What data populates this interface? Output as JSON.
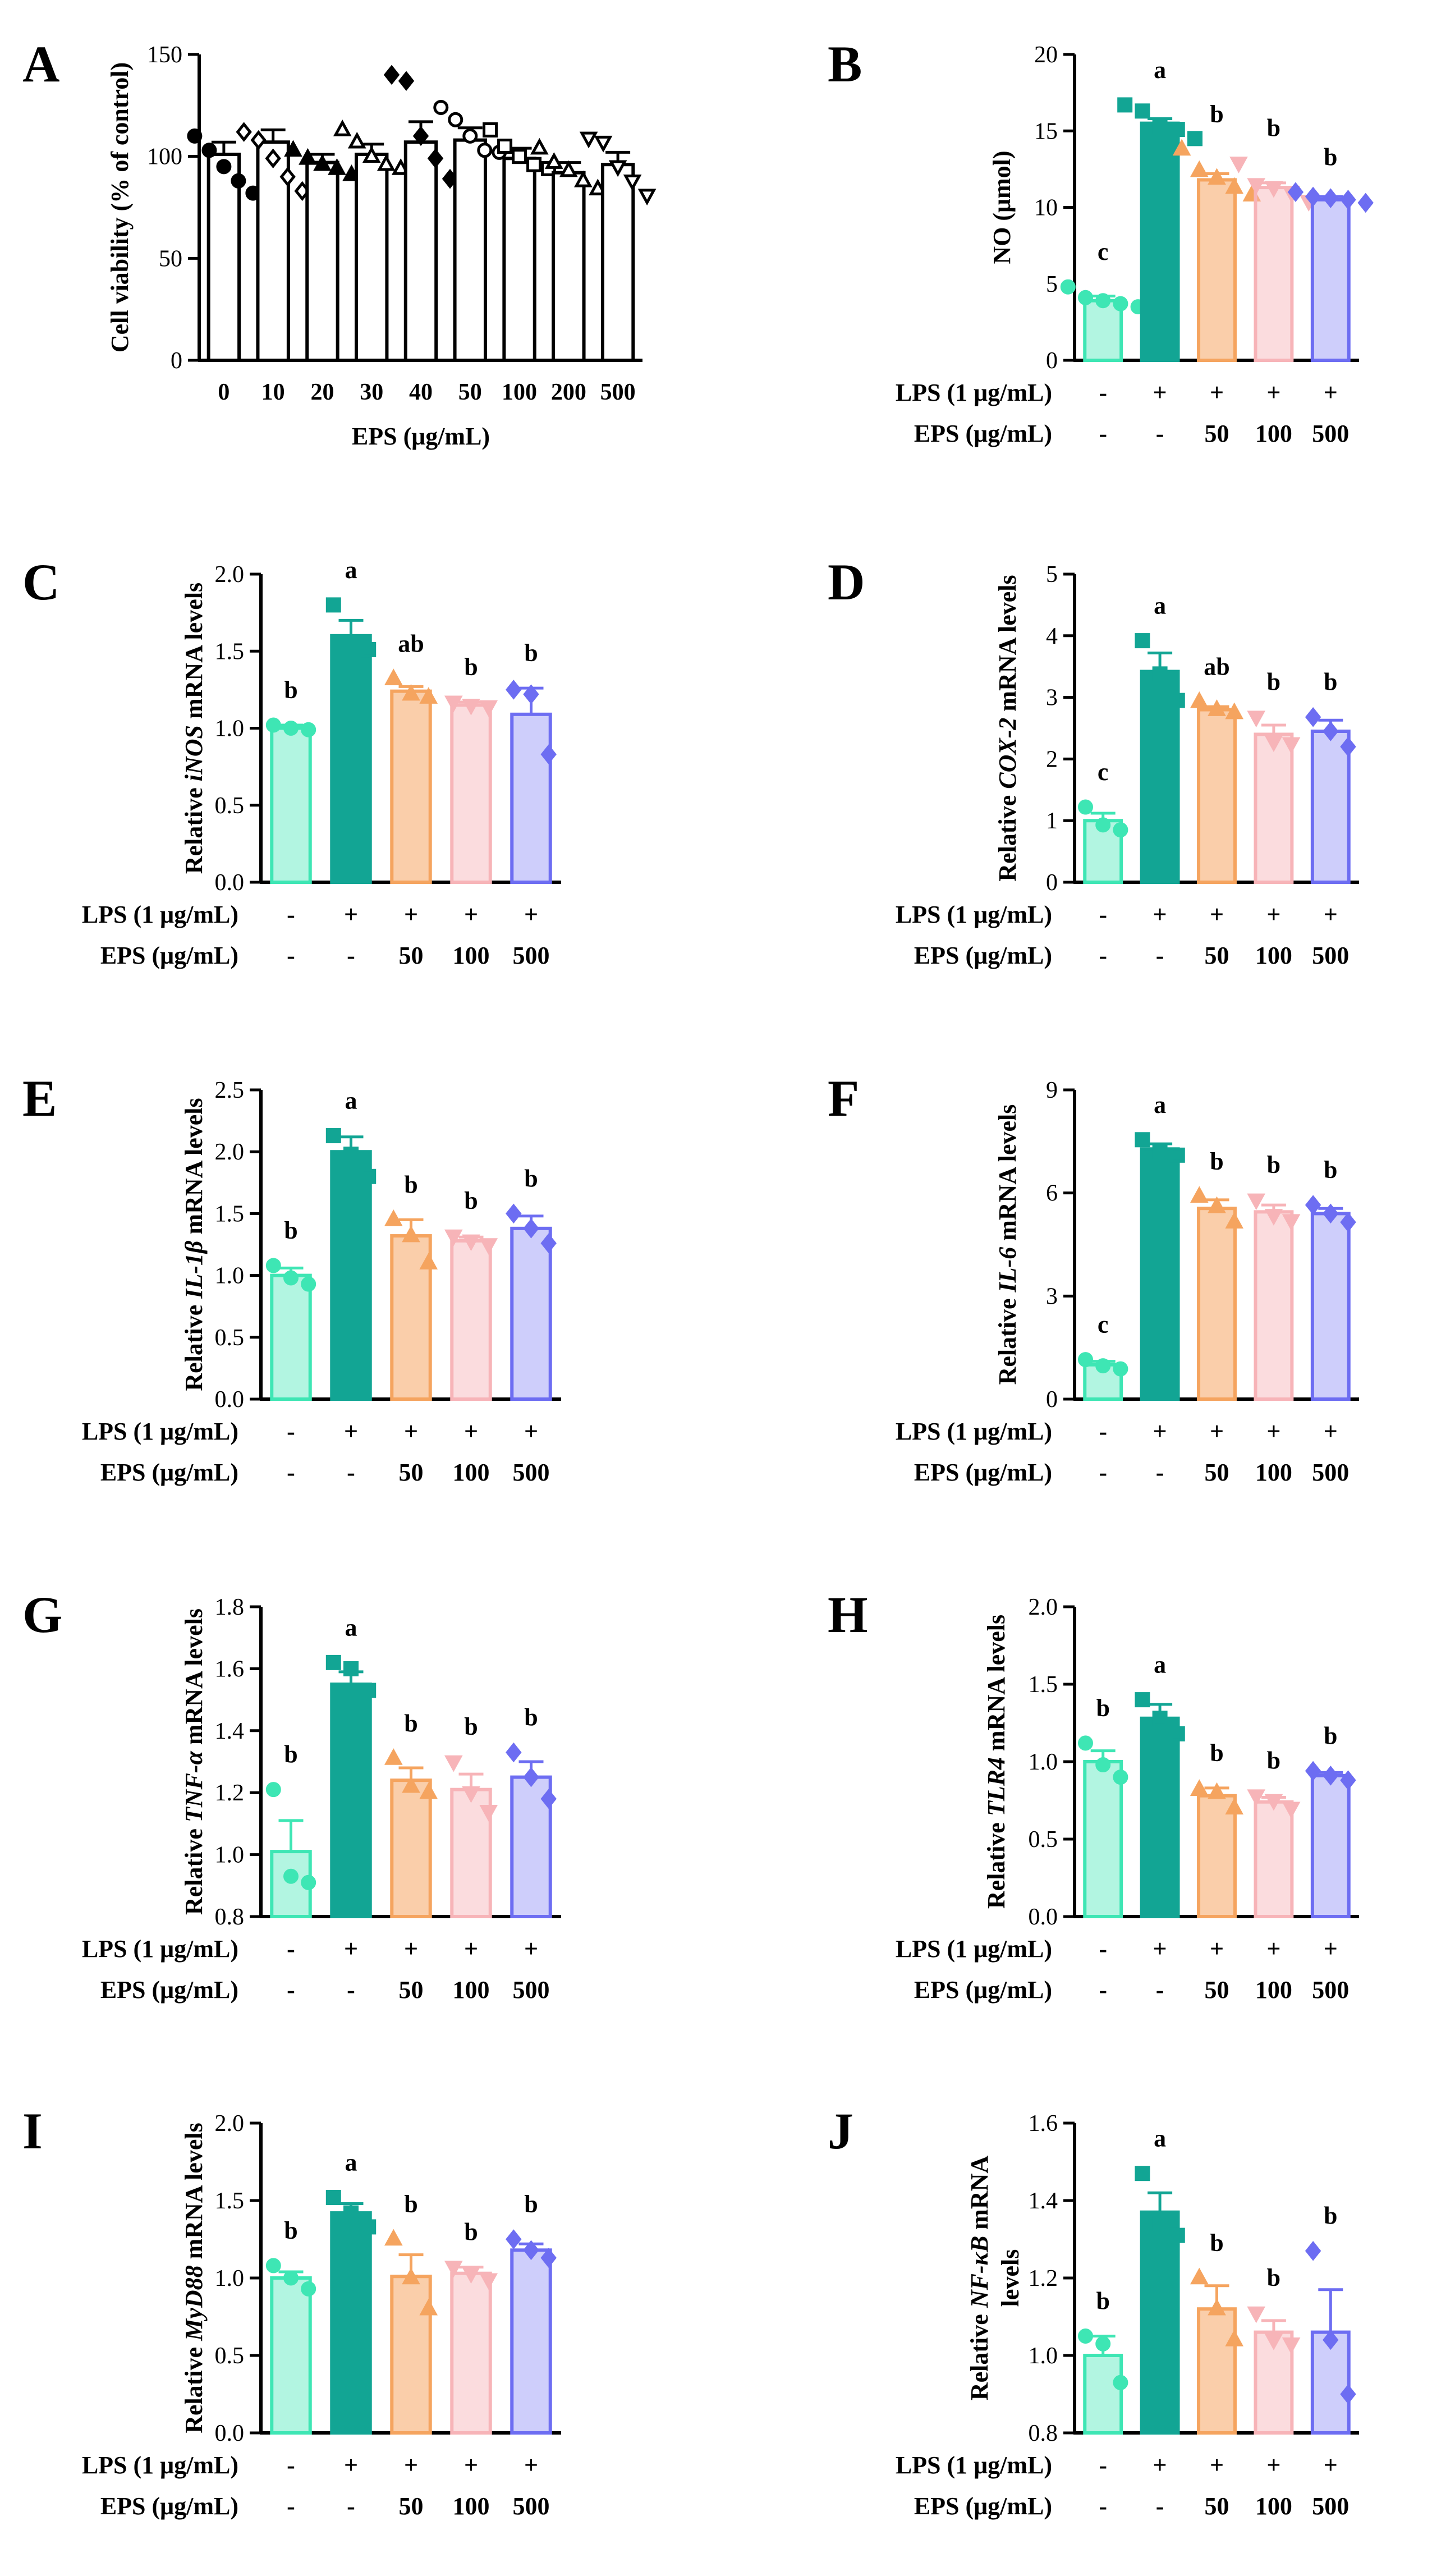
{
  "colors": {
    "control": "#3ee6b4",
    "lps": "#12a594",
    "eps50": "#f5a45f",
    "eps100": "#f7b4b8",
    "eps500": "#6d6df2",
    "black": "#000000"
  },
  "condition_table": {
    "lps_label": "LPS (1 μg/mL)",
    "eps_label": "EPS (μg/mL)",
    "lps_values": [
      "-",
      "+",
      "+",
      "+",
      "+"
    ],
    "eps_values": [
      "-",
      "-",
      "50",
      "100",
      "500"
    ]
  },
  "chart_data": [
    {
      "panel": "A",
      "type": "bar",
      "ylabel": "Cell viability (% of control)",
      "xlabel": "EPS (μg/mL)",
      "categories": [
        "0",
        "10",
        "20",
        "30",
        "40",
        "50",
        "100",
        "200",
        "500"
      ],
      "values": [
        101,
        107,
        97,
        101,
        107,
        108,
        99,
        92,
        96
      ],
      "errors": [
        6,
        6,
        4,
        5,
        10,
        6,
        5,
        5,
        6
      ],
      "ylim": [
        0,
        150
      ],
      "yticks": [
        0,
        50,
        100,
        150
      ],
      "points": [
        [
          110,
          103,
          95,
          88,
          82
        ],
        [
          112,
          108,
          99,
          90,
          83
        ],
        [
          103,
          99,
          96,
          94,
          91
        ],
        [
          113,
          107,
          100,
          96,
          94
        ],
        [
          140,
          137,
          110,
          99,
          89
        ],
        [
          124,
          118,
          110,
          103,
          102
        ],
        [
          113,
          105,
          100,
          96,
          94
        ],
        [
          104,
          97,
          93,
          88,
          84
        ],
        [
          109,
          107,
          95,
          88,
          81
        ]
      ],
      "markers": [
        "circle",
        "diamond-open",
        "triangle",
        "triangle-open",
        "diamond",
        "circle-open",
        "square-open",
        "triangle-open",
        "triangle-down-open"
      ],
      "letters": []
    },
    {
      "panel": "B",
      "type": "bar",
      "ylabel": "NO (μmol)",
      "values": [
        3.9,
        15.5,
        11.8,
        11.3,
        10.5
      ],
      "errors": [
        0.3,
        0.3,
        0.4,
        0.3,
        0.2
      ],
      "ylim": [
        0,
        20
      ],
      "yticks": [
        0,
        5,
        10,
        15,
        20
      ],
      "points": [
        [
          4.8,
          4.1,
          3.9,
          3.7,
          3.5
        ],
        [
          16.7,
          16.3,
          15.3,
          15.1,
          14.5
        ],
        [
          13.8,
          12.4,
          11.9,
          11.3,
          10.8
        ],
        [
          12.9,
          11.5,
          11.3,
          11.0,
          10.4
        ],
        [
          11.0,
          10.7,
          10.6,
          10.5,
          10.3
        ]
      ],
      "letters": [
        "c",
        "a",
        "b",
        "b",
        "b"
      ]
    },
    {
      "panel": "C",
      "type": "bar",
      "ylabel_prefix": "Relative ",
      "ylabel_gene": "iNOS",
      "ylabel_suffix": " mRNA levels",
      "values": [
        1.0,
        1.6,
        1.24,
        1.15,
        1.09
      ],
      "errors": [
        0.02,
        0.1,
        0.03,
        0.02,
        0.17
      ],
      "ylim": [
        0,
        2.0
      ],
      "yticks": [
        "0.0",
        "0.5",
        "1.0",
        "1.5",
        "2.0"
      ],
      "points": [
        [
          1.02,
          1.0,
          0.99
        ],
        [
          1.8,
          1.53,
          1.51
        ],
        [
          1.32,
          1.22,
          1.2
        ],
        [
          1.17,
          1.15,
          1.14
        ],
        [
          1.25,
          1.22,
          0.83
        ]
      ],
      "letters": [
        "b",
        "a",
        "ab",
        "b",
        "b"
      ]
    },
    {
      "panel": "D",
      "type": "bar",
      "ylabel_prefix": "Relative ",
      "ylabel_gene": "COX-2",
      "ylabel_suffix": "  mRNA levels",
      "values": [
        1.0,
        3.42,
        2.8,
        2.4,
        2.45
      ],
      "errors": [
        0.12,
        0.3,
        0.05,
        0.15,
        0.18
      ],
      "ylim": [
        0,
        5
      ],
      "yticks": [
        "0",
        "1",
        "2",
        "3",
        "4",
        "5"
      ],
      "points": [
        [
          1.22,
          0.93,
          0.85
        ],
        [
          3.92,
          3.38,
          2.95
        ],
        [
          2.93,
          2.8,
          2.75
        ],
        [
          2.68,
          2.28,
          2.25
        ],
        [
          2.68,
          2.45,
          2.2
        ]
      ],
      "letters": [
        "c",
        "a",
        "ab",
        "b",
        "b"
      ]
    },
    {
      "panel": "E",
      "type": "bar",
      "ylabel_prefix": "Relative ",
      "ylabel_gene": "IL-1β",
      "ylabel_suffix": " mRNA levels",
      "values": [
        1.0,
        2.0,
        1.32,
        1.28,
        1.38
      ],
      "errors": [
        0.06,
        0.12,
        0.13,
        0.03,
        0.1
      ],
      "ylim": [
        0,
        2.5
      ],
      "yticks": [
        "0.0",
        "0.5",
        "1.0",
        "1.5",
        "2.0",
        "2.5"
      ],
      "points": [
        [
          1.08,
          0.98,
          0.93
        ],
        [
          2.13,
          1.98,
          1.8
        ],
        [
          1.45,
          1.32,
          1.1
        ],
        [
          1.32,
          1.28,
          1.25
        ],
        [
          1.5,
          1.38,
          1.26
        ]
      ],
      "letters": [
        "b",
        "a",
        "b",
        "b",
        "b"
      ]
    },
    {
      "panel": "F",
      "type": "bar",
      "ylabel_prefix": "Relative ",
      "ylabel_gene": "IL-6",
      "ylabel_suffix": " mRNA levels",
      "values": [
        1.0,
        7.28,
        5.55,
        5.45,
        5.4
      ],
      "errors": [
        0.1,
        0.15,
        0.25,
        0.2,
        0.15
      ],
      "ylim": [
        0,
        9
      ],
      "yticks": [
        "0",
        "3",
        "6",
        "9"
      ],
      "points": [
        [
          1.15,
          0.97,
          0.88
        ],
        [
          7.55,
          7.2,
          7.1
        ],
        [
          5.9,
          5.6,
          5.15
        ],
        [
          5.8,
          5.35,
          5.2
        ],
        [
          5.65,
          5.4,
          5.15
        ]
      ],
      "letters": [
        "c",
        "a",
        "b",
        "b",
        "b"
      ]
    },
    {
      "panel": "G",
      "type": "bar",
      "ylabel_prefix": "Relative ",
      "ylabel_gene": "TNF-α",
      "ylabel_suffix": " mRNA levels",
      "values": [
        1.01,
        1.55,
        1.24,
        1.21,
        1.25
      ],
      "errors": [
        0.1,
        0.04,
        0.04,
        0.05,
        0.05
      ],
      "ylim": [
        0.8,
        1.8
      ],
      "yticks": [
        "0.8",
        "1.0",
        "1.2",
        "1.4",
        "1.6",
        "1.8"
      ],
      "points": [
        [
          1.21,
          0.93,
          0.91
        ],
        [
          1.62,
          1.6,
          1.53
        ],
        [
          1.31,
          1.22,
          1.2
        ],
        [
          1.3,
          1.2,
          1.14
        ],
        [
          1.33,
          1.25,
          1.18
        ]
      ],
      "letters": [
        "b",
        "a",
        "b",
        "b",
        "b"
      ]
    },
    {
      "panel": "H",
      "type": "bar",
      "ylabel_prefix": "Relative ",
      "ylabel_gene": "TLR4",
      "ylabel_suffix": " mRNA levels",
      "values": [
        1.0,
        1.28,
        0.78,
        0.74,
        0.91
      ],
      "errors": [
        0.07,
        0.09,
        0.05,
        0.03,
        0.02
      ],
      "ylim": [
        0,
        2.0
      ],
      "yticks": [
        "0.0",
        "0.5",
        "1.0",
        "1.5",
        "2.0"
      ],
      "points": [
        [
          1.12,
          0.98,
          0.9
        ],
        [
          1.4,
          1.28,
          1.18
        ],
        [
          0.82,
          0.8,
          0.7
        ],
        [
          0.78,
          0.75,
          0.7
        ],
        [
          0.94,
          0.91,
          0.88
        ]
      ],
      "letters": [
        "b",
        "a",
        "b",
        "b",
        "b"
      ]
    },
    {
      "panel": "I",
      "type": "bar",
      "ylabel_prefix": "Relative ",
      "ylabel_gene": "MyD88",
      "ylabel_suffix": " mRNA levels",
      "values": [
        1.0,
        1.42,
        1.01,
        1.03,
        1.18
      ],
      "errors": [
        0.04,
        0.06,
        0.14,
        0.04,
        0.04
      ],
      "ylim": [
        0,
        2.0
      ],
      "yticks": [
        "0.0",
        "0.5",
        "1.0",
        "1.5",
        "2.0"
      ],
      "points": [
        [
          1.08,
          1.0,
          0.93
        ],
        [
          1.52,
          1.42,
          1.33
        ],
        [
          1.25,
          1.0,
          0.8
        ],
        [
          1.07,
          1.03,
          0.99
        ],
        [
          1.25,
          1.18,
          1.13
        ]
      ],
      "letters": [
        "b",
        "a",
        "b",
        "b",
        "b"
      ]
    },
    {
      "panel": "J",
      "type": "bar",
      "ylabel_line1_prefix": "Relative ",
      "ylabel_gene": "NF-κB",
      "ylabel_line1_suffix": " mRNA",
      "ylabel_line2": "levels",
      "values": [
        1.0,
        1.37,
        1.12,
        1.06,
        1.06
      ],
      "errors": [
        0.05,
        0.05,
        0.06,
        0.03,
        0.11
      ],
      "ylim": [
        0.8,
        1.6
      ],
      "yticks": [
        "0.8",
        "1.0",
        "1.2",
        "1.4",
        "1.6"
      ],
      "points": [
        [
          1.05,
          1.03,
          0.93
        ],
        [
          1.47,
          1.34,
          1.31
        ],
        [
          1.2,
          1.12,
          1.04
        ],
        [
          1.11,
          1.04,
          1.03
        ],
        [
          1.27,
          1.04,
          0.9
        ]
      ],
      "letters": [
        "b",
        "a",
        "b",
        "b",
        "b"
      ]
    }
  ]
}
